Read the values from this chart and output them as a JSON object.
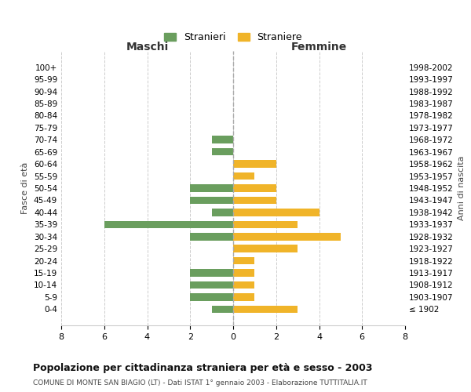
{
  "age_groups": [
    "100+",
    "95-99",
    "90-94",
    "85-89",
    "80-84",
    "75-79",
    "70-74",
    "65-69",
    "60-64",
    "55-59",
    "50-54",
    "45-49",
    "40-44",
    "35-39",
    "30-34",
    "25-29",
    "20-24",
    "15-19",
    "10-14",
    "5-9",
    "0-4"
  ],
  "birth_years": [
    "≤ 1902",
    "1903-1907",
    "1908-1912",
    "1913-1917",
    "1918-1922",
    "1923-1927",
    "1928-1932",
    "1933-1937",
    "1938-1942",
    "1943-1947",
    "1948-1952",
    "1953-1957",
    "1958-1962",
    "1963-1967",
    "1968-1972",
    "1973-1977",
    "1978-1982",
    "1983-1987",
    "1988-1992",
    "1993-1997",
    "1998-2002"
  ],
  "maschi": [
    0,
    0,
    0,
    0,
    0,
    0,
    1,
    1,
    0,
    0,
    2,
    2,
    1,
    6,
    2,
    0,
    0,
    2,
    2,
    2,
    1
  ],
  "femmine": [
    0,
    0,
    0,
    0,
    0,
    0,
    0,
    0,
    2,
    1,
    2,
    2,
    4,
    3,
    5,
    3,
    1,
    1,
    1,
    1,
    3
  ],
  "color_maschi": "#6a9e5e",
  "color_femmine": "#f0b429",
  "title": "Popolazione per cittadinanza straniera per età e sesso - 2003",
  "subtitle": "COMUNE DI MONTE SAN BIAGIO (LT) - Dati ISTAT 1° gennaio 2003 - Elaborazione TUTTITALIA.IT",
  "xlabel_left": "Maschi",
  "xlabel_right": "Femmine",
  "ylabel_left": "Fasce di età",
  "ylabel_right": "Anni di nascita",
  "legend_maschi": "Stranieri",
  "legend_femmine": "Straniere",
  "xlim": 8,
  "background_color": "#ffffff",
  "grid_color": "#cccccc"
}
